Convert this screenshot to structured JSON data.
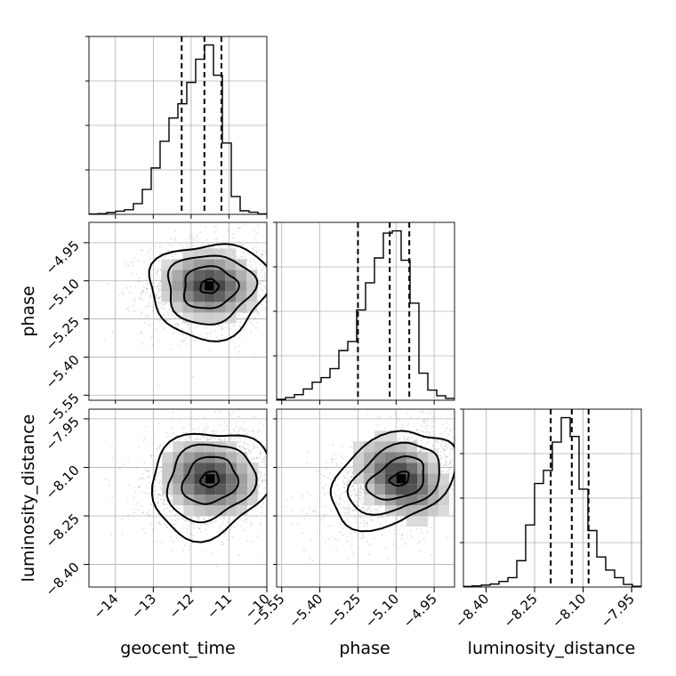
{
  "chart_data": {
    "type": "corner",
    "parameters": [
      "geocent_time",
      "phase",
      "luminosity_distance"
    ],
    "axis_labels": {
      "geocent_time": "geocent_time",
      "phase": "phase",
      "luminosity_distance": "luminosity_distance"
    },
    "ranges": {
      "geocent_time": [
        -14.7,
        -10.0
      ],
      "phase": [
        -5.57,
        -4.87
      ],
      "luminosity_distance": [
        -8.47,
        -7.92
      ]
    },
    "ticks": {
      "geocent_time": [
        -14,
        -13,
        -12,
        -11,
        -10
      ],
      "phase": [
        -5.55,
        -5.4,
        -5.25,
        -5.1,
        -4.95
      ],
      "luminosity_distance": [
        -8.4,
        -8.25,
        -8.1,
        -7.95
      ]
    },
    "tick_labels": {
      "geocent_time": [
        "−14",
        "−13",
        "−12",
        "−11",
        "−10"
      ],
      "phase": [
        "−5.55",
        "−5.40",
        "−5.25",
        "−5.10",
        "−4.95"
      ],
      "luminosity_distance": [
        "−8.40",
        "−8.25",
        "−8.10",
        "−7.95"
      ]
    },
    "histograms": {
      "geocent_time": {
        "bin_edges": [
          -14.7,
          -14.465,
          -14.23,
          -13.995,
          -13.76,
          -13.525,
          -13.29,
          -13.055,
          -12.82,
          -12.585,
          -12.35,
          -12.115,
          -11.88,
          -11.645,
          -11.41,
          -11.175,
          -10.94,
          -10.705,
          -10.47,
          -10.235,
          -10.0
        ],
        "counts": [
          0.2,
          0.4,
          1.0,
          1.8,
          2.6,
          6.0,
          14.0,
          26.0,
          41.0,
          54.0,
          62.0,
          74.0,
          87.0,
          95.0,
          78.0,
          40.0,
          10.0,
          2.0,
          1.2,
          0.3
        ],
        "quantiles": [
          -12.25,
          -11.65,
          -11.2
        ]
      },
      "phase": {
        "bin_edges": [
          -5.57,
          -5.535,
          -5.5,
          -5.465,
          -5.43,
          -5.395,
          -5.36,
          -5.325,
          -5.29,
          -5.255,
          -5.22,
          -5.185,
          -5.15,
          -5.115,
          -5.08,
          -5.045,
          -5.01,
          -4.975,
          -4.94,
          -4.905,
          -4.87
        ],
        "counts": [
          0.4,
          1.2,
          2.5,
          5.0,
          8.0,
          10.0,
          14.0,
          22.0,
          26.0,
          40.0,
          52.0,
          63.0,
          74.0,
          75.0,
          62.0,
          43.0,
          12.0,
          4.5,
          2.0,
          0.8
        ],
        "quantiles": [
          -5.25,
          -5.125,
          -5.048
        ]
      },
      "luminosity_distance": {
        "bin_edges": [
          -8.47,
          -8.4425,
          -8.415,
          -8.3875,
          -8.36,
          -8.3325,
          -8.305,
          -8.2775,
          -8.25,
          -8.2225,
          -8.195,
          -8.1675,
          -8.14,
          -8.1125,
          -8.085,
          -8.0575,
          -8.03,
          -8.0025,
          -7.975,
          -7.9475,
          -7.92
        ],
        "counts": [
          0.3,
          0.6,
          1.0,
          1.6,
          3.0,
          5.0,
          14.0,
          33.0,
          55.0,
          62.0,
          77.0,
          90.0,
          80.0,
          52.0,
          30.0,
          16.0,
          9.0,
          5.0,
          1.4,
          0.4
        ],
        "quantiles": [
          -8.2,
          -8.135,
          -8.083
        ]
      }
    },
    "pairs": [
      {
        "x": "geocent_time",
        "y": "phase",
        "peak": [
          -11.52,
          -5.12
        ],
        "spread": [
          0.75,
          0.08
        ]
      },
      {
        "x": "geocent_time",
        "y": "luminosity_distance",
        "peak": [
          -11.5,
          -8.135
        ],
        "spread": [
          0.75,
          0.07
        ]
      },
      {
        "x": "phase",
        "y": "luminosity_distance",
        "peak": [
          -5.08,
          -8.135
        ],
        "spread": [
          0.1,
          0.07
        ]
      }
    ]
  }
}
